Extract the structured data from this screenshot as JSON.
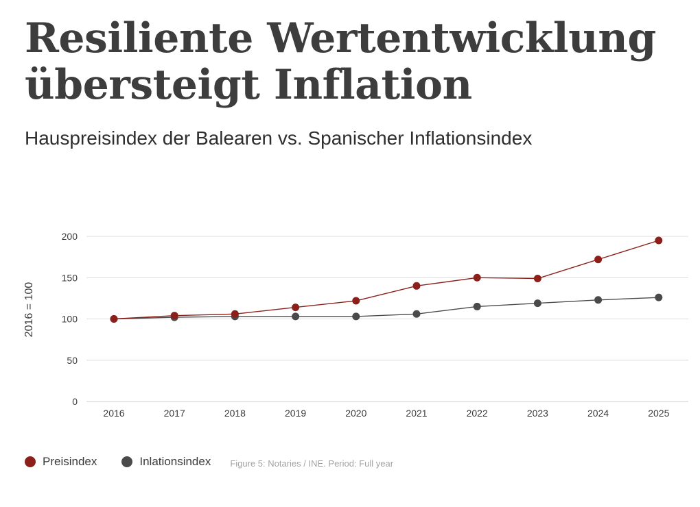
{
  "header": {
    "title_line1": "Resiliente Wertentwicklung",
    "title_line2": "übersteigt Inflation",
    "subtitle_part1": "Hauspreisindex der Balearen",
    "subtitle_vs": "vs.",
    "subtitle_part2": "Spanischer Inflationsindex"
  },
  "colors": {
    "price": "#8b1f1a",
    "inflation": "#4a4a4a",
    "grid": "#dcdcdc"
  },
  "chart_data": {
    "type": "line",
    "title": "Hauspreisindex der Balearen vs. Spanischer Inflationsindex",
    "xlabel": "",
    "ylabel": "2016 = 100",
    "x": [
      "2016",
      "2017",
      "2018",
      "2019",
      "2020",
      "2021",
      "2022",
      "2023",
      "2024",
      "2025"
    ],
    "ylim": [
      0,
      200
    ],
    "yticks": [
      "0",
      "50",
      "100",
      "150",
      "200"
    ],
    "grid": true,
    "legend_position": "bottom-left",
    "series": [
      {
        "name": "Preisindex",
        "values": [
          100,
          104,
          106,
          114,
          122,
          140,
          150,
          149,
          172,
          195
        ]
      },
      {
        "name": "Inlationsindex",
        "values": [
          100,
          102,
          103,
          103,
          103,
          106,
          115,
          119,
          123,
          126
        ]
      }
    ]
  },
  "legend": {
    "items": [
      "Preisindex",
      "Inlationsindex"
    ],
    "source": "Figure 5: Notaries / INE. Period: Full year"
  }
}
